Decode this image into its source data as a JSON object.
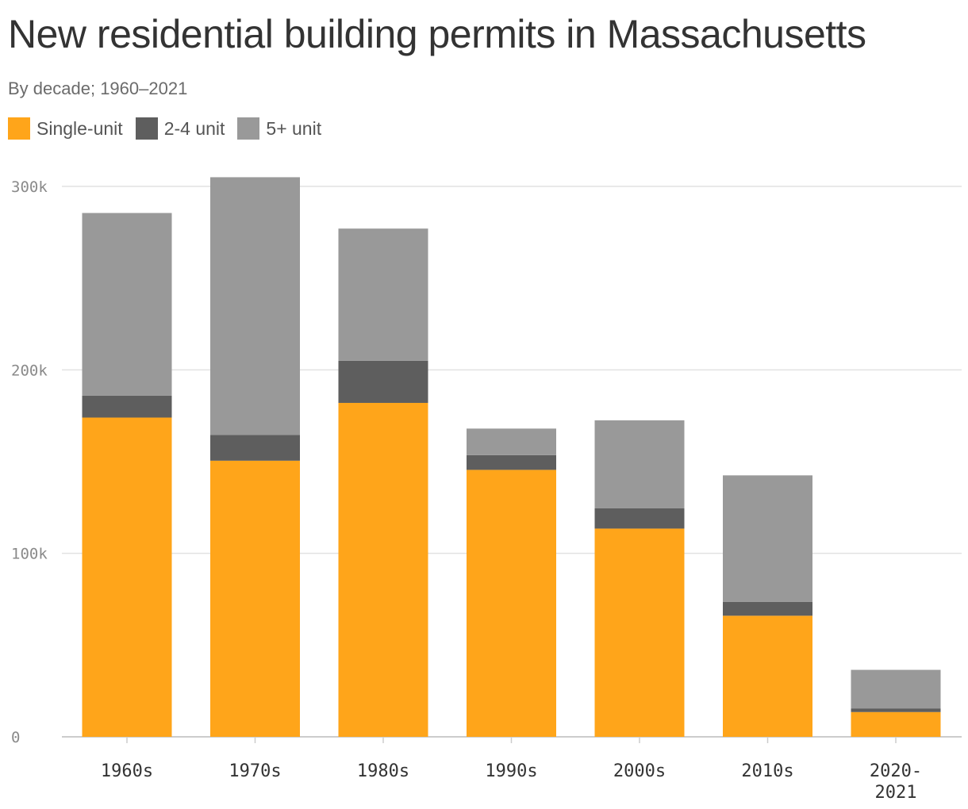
{
  "title": "New residential building permits in Massachusetts",
  "subtitle": "By decade; 1960–2021",
  "legend": [
    {
      "label": "Single-unit",
      "color": "#ffa51a"
    },
    {
      "label": "2-4 unit",
      "color": "#5e5e5e"
    },
    {
      "label": "5+ unit",
      "color": "#999999"
    }
  ],
  "chart_data": {
    "type": "bar",
    "stacked": true,
    "title": "New residential building permits in Massachusetts",
    "subtitle": "By decade; 1960–2021",
    "categories": [
      [
        "1960s"
      ],
      [
        "1970s"
      ],
      [
        "1980s"
      ],
      [
        "1990s"
      ],
      [
        "2000s"
      ],
      [
        "2010s"
      ],
      [
        "2020-",
        "2021"
      ]
    ],
    "series": [
      {
        "name": "Single-unit",
        "color": "#ffa51a",
        "values": [
          174000,
          150500,
          182000,
          145500,
          113500,
          66000,
          13500
        ]
      },
      {
        "name": "2-4 unit",
        "color": "#5e5e5e",
        "values": [
          12000,
          14000,
          23000,
          8000,
          11000,
          7500,
          2000
        ]
      },
      {
        "name": "5+ unit",
        "color": "#999999",
        "values": [
          99500,
          140500,
          72000,
          14500,
          48000,
          69000,
          21000
        ]
      }
    ],
    "y_ticks": [
      {
        "value": 0,
        "label": "0"
      },
      {
        "value": 100000,
        "label": "100k"
      },
      {
        "value": 200000,
        "label": "200k"
      },
      {
        "value": 300000,
        "label": "300k"
      }
    ],
    "ylim": [
      0,
      300000
    ],
    "grid": true,
    "legend_position": "top-left"
  }
}
